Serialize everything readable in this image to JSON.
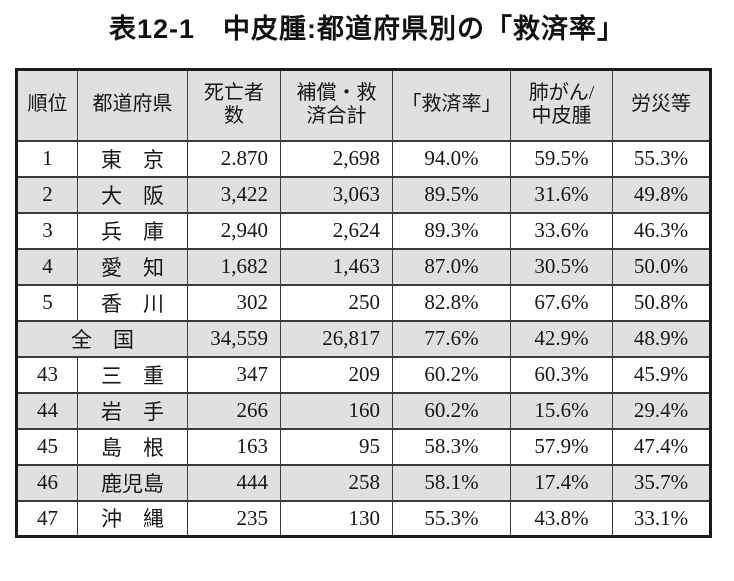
{
  "title": "表12-1　中皮腫:都道府県別の「救済率」",
  "colors": {
    "shaded_row_bg": "#e0e0e0",
    "table_border": "#3c3c3c",
    "outer_border": "#1b1b1b",
    "text": "#161616"
  },
  "table": {
    "headers": [
      "順位",
      "都道府県",
      "死亡者\n数",
      "補償・救\n済合計",
      "「救済率」",
      "肺がん/\n中皮腫",
      "労災等"
    ],
    "rows": [
      {
        "rank": "1",
        "pref": "東　京",
        "deaths": "2.870",
        "relief_total": "2,698",
        "relief_rate": "94.0%",
        "lung_mesothelioma": "59.5%",
        "rosai": "55.3%",
        "shaded": false,
        "merged": false
      },
      {
        "rank": "2",
        "pref": "大　阪",
        "deaths": "3,422",
        "relief_total": "3,063",
        "relief_rate": "89.5%",
        "lung_mesothelioma": "31.6%",
        "rosai": "49.8%",
        "shaded": true,
        "merged": false
      },
      {
        "rank": "3",
        "pref": "兵　庫",
        "deaths": "2,940",
        "relief_total": "2,624",
        "relief_rate": "89.3%",
        "lung_mesothelioma": "33.6%",
        "rosai": "46.3%",
        "shaded": false,
        "merged": false
      },
      {
        "rank": "4",
        "pref": "愛　知",
        "deaths": "1,682",
        "relief_total": "1,463",
        "relief_rate": "87.0%",
        "lung_mesothelioma": "30.5%",
        "rosai": "50.0%",
        "shaded": true,
        "merged": false
      },
      {
        "rank": "5",
        "pref": "香　川",
        "deaths": "302",
        "relief_total": "250",
        "relief_rate": "82.8%",
        "lung_mesothelioma": "67.6%",
        "rosai": "50.8%",
        "shaded": false,
        "merged": false
      },
      {
        "rank": "",
        "pref": "全　国",
        "deaths": "34,559",
        "relief_total": "26,817",
        "relief_rate": "77.6%",
        "lung_mesothelioma": "42.9%",
        "rosai": "48.9%",
        "shaded": true,
        "merged": true
      },
      {
        "rank": "43",
        "pref": "三　重",
        "deaths": "347",
        "relief_total": "209",
        "relief_rate": "60.2%",
        "lung_mesothelioma": "60.3%",
        "rosai": "45.9%",
        "shaded": false,
        "merged": false
      },
      {
        "rank": "44",
        "pref": "岩　手",
        "deaths": "266",
        "relief_total": "160",
        "relief_rate": "60.2%",
        "lung_mesothelioma": "15.6%",
        "rosai": "29.4%",
        "shaded": true,
        "merged": false
      },
      {
        "rank": "45",
        "pref": "島　根",
        "deaths": "163",
        "relief_total": "95",
        "relief_rate": "58.3%",
        "lung_mesothelioma": "57.9%",
        "rosai": "47.4%",
        "shaded": false,
        "merged": false
      },
      {
        "rank": "46",
        "pref": "鹿児島",
        "deaths": "444",
        "relief_total": "258",
        "relief_rate": "58.1%",
        "lung_mesothelioma": "17.4%",
        "rosai": "35.7%",
        "shaded": true,
        "merged": false
      },
      {
        "rank": "47",
        "pref": "沖　縄",
        "deaths": "235",
        "relief_total": "130",
        "relief_rate": "55.3%",
        "lung_mesothelioma": "43.8%",
        "rosai": "33.1%",
        "shaded": false,
        "merged": false
      }
    ]
  }
}
